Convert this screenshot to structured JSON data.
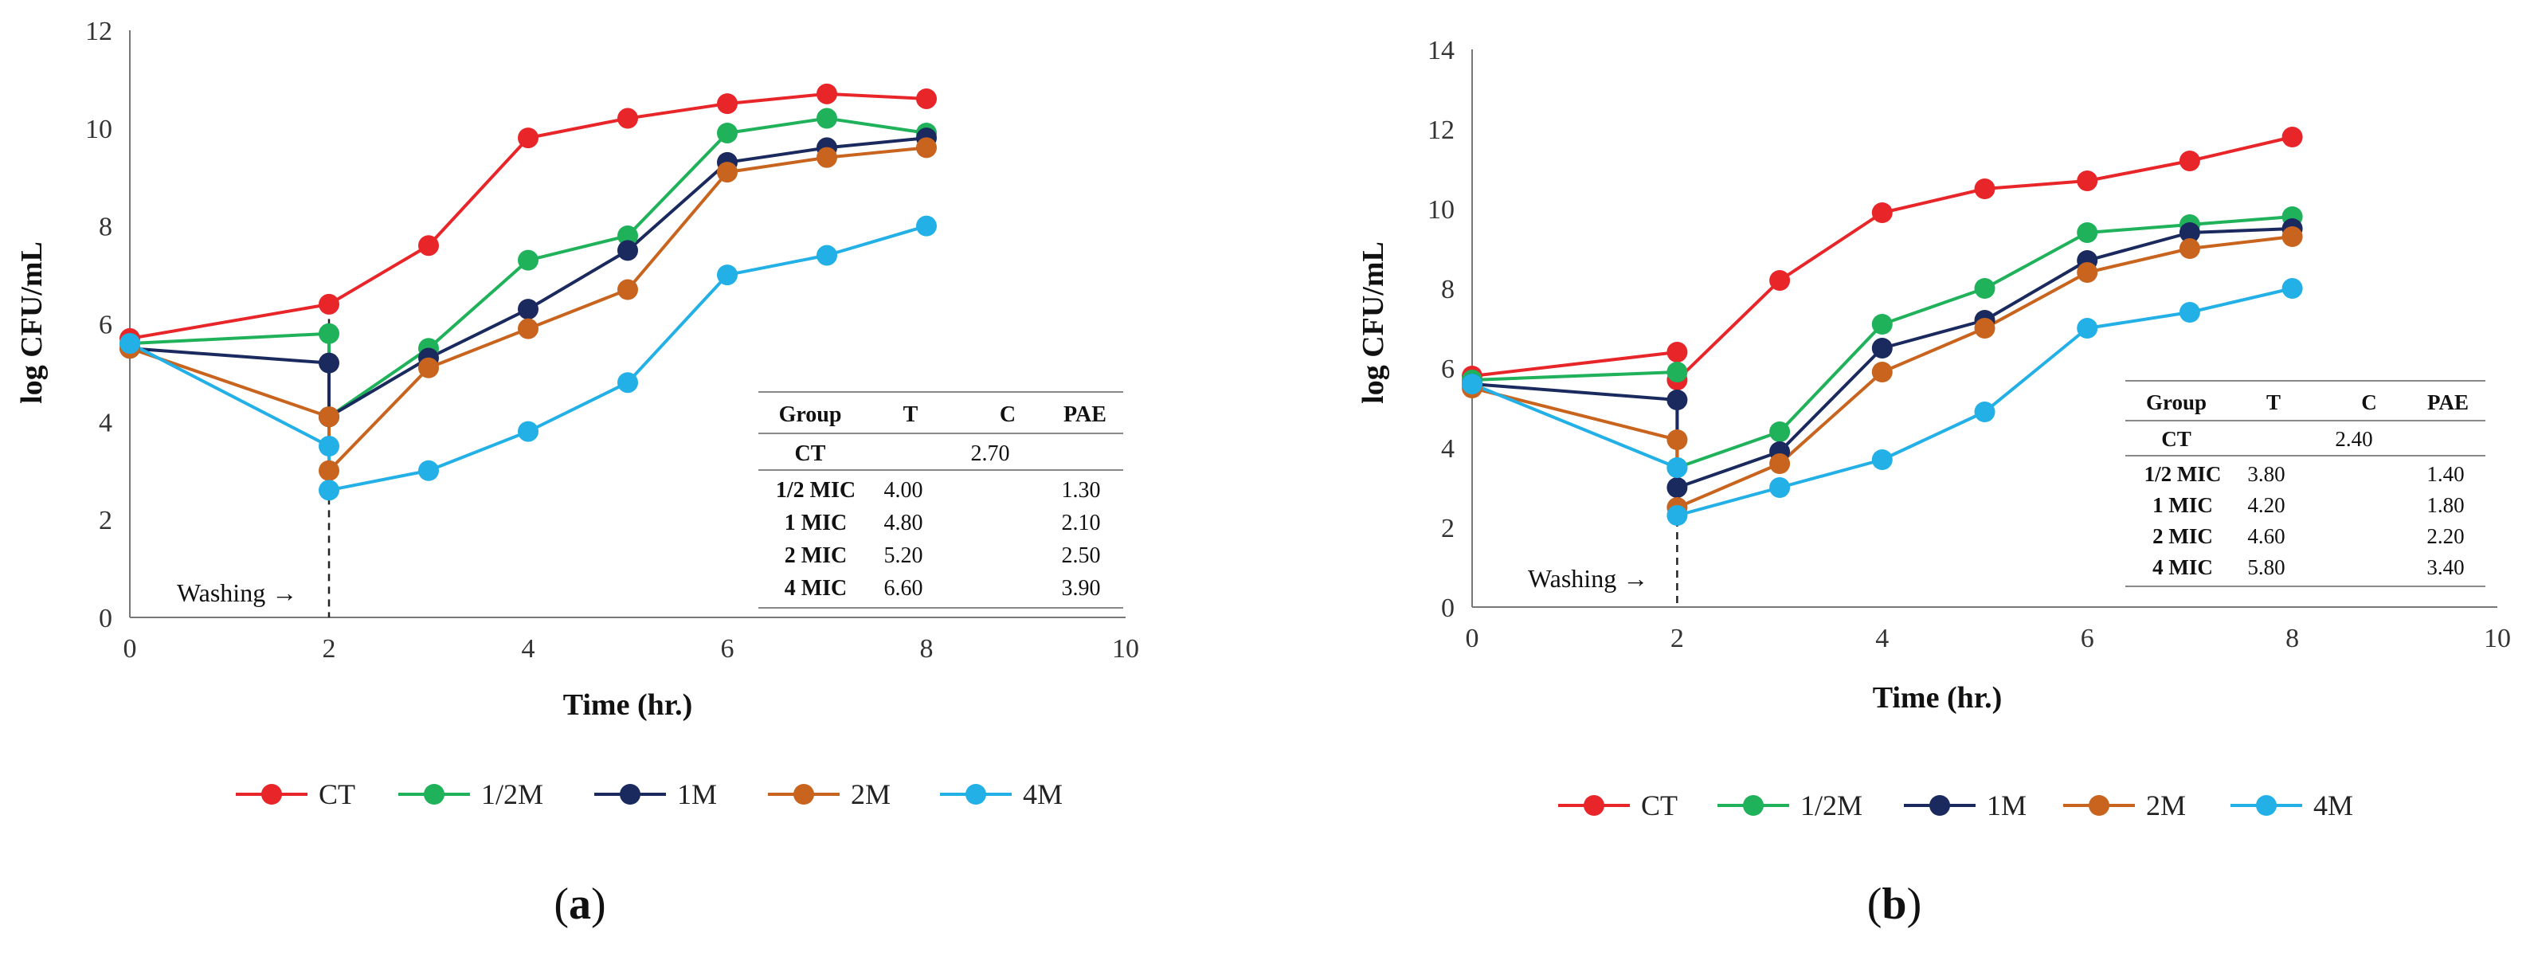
{
  "chart_data": [
    {
      "type": "line",
      "panel_label": "a",
      "title": "",
      "xlabel": "Time (hr.)",
      "ylabel": "log CFU/mL",
      "xlim": [
        0,
        10
      ],
      "ylim": [
        0,
        12
      ],
      "xticks": [
        0,
        2,
        4,
        6,
        8,
        10
      ],
      "yticks": [
        0,
        2,
        4,
        6,
        8,
        10,
        12
      ],
      "annotation": "Washing →",
      "annotation_x": 2,
      "series": [
        {
          "name": "CT",
          "color": "#e8262a",
          "x": [
            0,
            2,
            3,
            4,
            5,
            6,
            7,
            8
          ],
          "values": [
            5.7,
            6.4,
            7.6,
            9.8,
            10.2,
            10.5,
            10.7,
            10.6
          ]
        },
        {
          "name": "1/2M",
          "color": "#1fb25a",
          "x": [
            0,
            2,
            2,
            3,
            4,
            5,
            6,
            7,
            8
          ],
          "values": [
            5.6,
            5.8,
            4.1,
            5.5,
            7.3,
            7.8,
            9.9,
            10.2,
            9.9
          ]
        },
        {
          "name": "1M",
          "color": "#1b2a5e",
          "x": [
            0,
            2,
            2,
            3,
            4,
            5,
            6,
            7,
            8
          ],
          "values": [
            5.5,
            5.2,
            4.1,
            5.3,
            6.3,
            7.5,
            9.3,
            9.6,
            9.8
          ]
        },
        {
          "name": "2M",
          "color": "#c8641e",
          "x": [
            0,
            2,
            2,
            3,
            4,
            5,
            6,
            7,
            8
          ],
          "values": [
            5.5,
            4.1,
            3.0,
            5.1,
            5.9,
            6.7,
            9.1,
            9.4,
            9.6
          ]
        },
        {
          "name": "4M",
          "color": "#22b0e6",
          "x": [
            0,
            2,
            2,
            3,
            4,
            5,
            6,
            7,
            8
          ],
          "values": [
            5.6,
            3.5,
            2.6,
            3.0,
            3.8,
            4.8,
            7.0,
            7.4,
            8.0
          ]
        }
      ],
      "table": {
        "headers": [
          "Group",
          "T",
          "C",
          "PAE"
        ],
        "ct_row": [
          "CT",
          "",
          "2.70",
          ""
        ],
        "rows": [
          [
            "1/2 MIC",
            "4.00",
            "",
            "1.30"
          ],
          [
            "1 MIC",
            "4.80",
            "",
            "2.10"
          ],
          [
            "2 MIC",
            "5.20",
            "",
            "2.50"
          ],
          [
            "4 MIC",
            "6.60",
            "",
            "3.90"
          ]
        ]
      }
    },
    {
      "type": "line",
      "panel_label": "b",
      "title": "",
      "xlabel": "Time (hr.)",
      "ylabel": "log CFU/mL",
      "xlim": [
        0,
        10
      ],
      "ylim": [
        0,
        14
      ],
      "xticks": [
        0,
        2,
        4,
        6,
        8,
        10
      ],
      "yticks": [
        0,
        2,
        4,
        6,
        8,
        10,
        12,
        14
      ],
      "annotation": "Washing →",
      "annotation_x": 2,
      "series": [
        {
          "name": "CT",
          "color": "#e8262a",
          "x": [
            0,
            2,
            2,
            3,
            4,
            5,
            6,
            7,
            8
          ],
          "values": [
            5.8,
            6.4,
            5.7,
            8.2,
            9.9,
            10.5,
            10.7,
            11.2,
            11.8
          ]
        },
        {
          "name": "1/2M",
          "color": "#1fb25a",
          "x": [
            0,
            2,
            2,
            3,
            4,
            5,
            6,
            7,
            8
          ],
          "values": [
            5.7,
            5.9,
            3.5,
            4.4,
            7.1,
            8.0,
            9.4,
            9.6,
            9.8
          ]
        },
        {
          "name": "1M",
          "color": "#1b2a5e",
          "x": [
            0,
            2,
            2,
            3,
            4,
            5,
            6,
            7,
            8
          ],
          "values": [
            5.6,
            5.2,
            3.0,
            3.9,
            6.5,
            7.2,
            8.7,
            9.4,
            9.5
          ]
        },
        {
          "name": "2M",
          "color": "#c8641e",
          "x": [
            0,
            2,
            2,
            3,
            4,
            5,
            6,
            7,
            8
          ],
          "values": [
            5.5,
            4.2,
            2.5,
            3.6,
            5.9,
            7.0,
            8.4,
            9.0,
            9.3
          ]
        },
        {
          "name": "4M",
          "color": "#22b0e6",
          "x": [
            0,
            2,
            2,
            3,
            4,
            5,
            6,
            7,
            8
          ],
          "values": [
            5.6,
            3.5,
            2.3,
            3.0,
            3.7,
            4.9,
            7.0,
            7.4,
            8.0
          ]
        }
      ],
      "table": {
        "headers": [
          "Group",
          "T",
          "C",
          "PAE"
        ],
        "ct_row": [
          "CT",
          "",
          "2.40",
          ""
        ],
        "rows": [
          [
            "1/2 MIC",
            "3.80",
            "",
            "1.40"
          ],
          [
            "1 MIC",
            "4.20",
            "",
            "1.80"
          ],
          [
            "2 MIC",
            "4.60",
            "",
            "2.20"
          ],
          [
            "4 MIC",
            "5.80",
            "",
            "3.40"
          ]
        ]
      }
    }
  ]
}
